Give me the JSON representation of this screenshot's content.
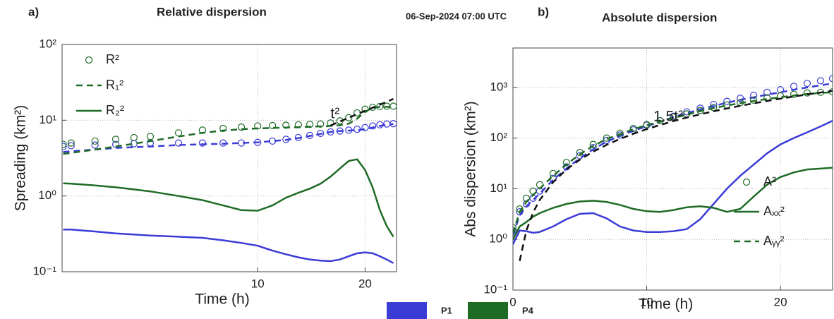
{
  "timestamp": "06-Sep-2024 07:00 UTC",
  "groups": [
    {
      "name": "P1",
      "color": "#3b3bd6"
    },
    {
      "name": "P4",
      "color": "#1e6b26"
    }
  ],
  "chart_data": [
    {
      "type": "line",
      "panel": "a)",
      "title": "Relative dispersion",
      "x_label": "Time (h)",
      "y_label": "Spreading (km²)",
      "xscale": "log",
      "yscale": "log",
      "grid": true,
      "legend": "upper left",
      "xlim": [
        2.83,
        24.5
      ],
      "ylim": [
        0.1,
        100
      ],
      "xticks": [
        10,
        20
      ],
      "yticks": [
        {
          "value": 0.1,
          "label": "10⁻¹"
        },
        {
          "value": 1,
          "label": "10⁰"
        },
        {
          "value": 10,
          "label": "10¹"
        },
        {
          "value": 100,
          "label": "10²"
        }
      ],
      "x": [
        2.85,
        3,
        3.5,
        4,
        4.5,
        5,
        6,
        7,
        8,
        9,
        10,
        11,
        12,
        13,
        14,
        15,
        16,
        17,
        18,
        19,
        20,
        21,
        22,
        23,
        24
      ],
      "series": [
        {
          "color": "#3b3bd6",
          "style": "marker",
          "values": [
            4.5,
            4.6,
            4.7,
            4.8,
            4.9,
            5.0,
            5.0,
            5.0,
            5.0,
            5.0,
            5.1,
            5.3,
            5.6,
            5.9,
            6.3,
            6.7,
            7.0,
            7.2,
            7.4,
            7.6,
            8.0,
            8.4,
            8.7,
            8.9,
            9.0
          ]
        },
        {
          "color": "#3b3bd6",
          "style": "dashed",
          "values": [
            3.8,
            3.9,
            4.1,
            4.3,
            4.4,
            4.5,
            4.7,
            4.8,
            4.9,
            5.0,
            5.1,
            5.3,
            5.5,
            5.8,
            6.2,
            6.6,
            7.0,
            7.2,
            7.3,
            7.4,
            7.6,
            8.0,
            8.4,
            8.7,
            8.9
          ]
        },
        {
          "color": "#3b3bd6",
          "style": "solid",
          "values": [
            0.36,
            0.36,
            0.34,
            0.32,
            0.31,
            0.3,
            0.29,
            0.28,
            0.26,
            0.24,
            0.22,
            0.19,
            0.17,
            0.155,
            0.145,
            0.14,
            0.138,
            0.145,
            0.16,
            0.175,
            0.18,
            0.175,
            0.16,
            0.145,
            0.13
          ]
        },
        {
          "name": "R²",
          "color": "#1e6b26",
          "style": "marker",
          "values": [
            4.8,
            5.0,
            5.3,
            5.6,
            5.9,
            6.1,
            6.8,
            7.4,
            7.8,
            8.1,
            8.4,
            8.5,
            8.6,
            8.7,
            8.8,
            8.9,
            9.2,
            9.8,
            10.8,
            12.5,
            14,
            14.8,
            15.2,
            15.3,
            15.3
          ]
        },
        {
          "name": "R₁²",
          "color": "#1e6b26",
          "style": "dashed",
          "values": [
            3.6,
            3.7,
            4.1,
            4.5,
            4.9,
            5.3,
            6.1,
            6.8,
            7.3,
            7.6,
            7.8,
            7.9,
            8.0,
            8.1,
            8.2,
            8.3,
            8.4,
            8.6,
            9.0,
            10.5,
            13,
            14.5,
            15,
            15,
            15
          ]
        },
        {
          "name": "R₂²",
          "color": "#1e6b26",
          "style": "solid",
          "values": [
            1.47,
            1.45,
            1.38,
            1.3,
            1.22,
            1.15,
            1.0,
            0.88,
            0.75,
            0.65,
            0.64,
            0.75,
            0.95,
            1.1,
            1.25,
            1.45,
            1.8,
            2.3,
            2.9,
            3.05,
            2.2,
            1.3,
            0.65,
            0.4,
            0.29
          ]
        },
        {
          "color": "#111111",
          "style": "dashed",
          "values": [
            null,
            null,
            null,
            null,
            null,
            null,
            null,
            null,
            null,
            null,
            null,
            null,
            null,
            null,
            null,
            null,
            8.5,
            9.6,
            10.8,
            12,
            13.3,
            14.6,
            16,
            17.6,
            19.1
          ]
        }
      ],
      "annotation": "t²"
    },
    {
      "type": "line",
      "panel": "b)",
      "title": "Absolute dispersion",
      "x_label": "Time (h)",
      "y_label": "Abs dispersion (km²)",
      "xscale": "linear",
      "yscale": "log",
      "grid": true,
      "legend": "lower right",
      "xlim": [
        0,
        23.9
      ],
      "ylim": [
        0.1,
        6000
      ],
      "xticks": [
        0,
        10,
        20
      ],
      "yticks": [
        {
          "value": 0.1,
          "label": "10⁻¹"
        },
        {
          "value": 1,
          "label": "10⁰"
        },
        {
          "value": 10,
          "label": "10¹"
        },
        {
          "value": 100,
          "label": "10²"
        },
        {
          "value": 1000,
          "label": "10³"
        }
      ],
      "x": [
        0,
        0.5,
        1,
        1.5,
        2,
        3,
        4,
        5,
        6,
        7,
        8,
        9,
        10,
        11,
        12,
        13,
        14,
        15,
        16,
        17,
        18,
        19,
        20,
        21,
        22,
        23,
        23.9
      ],
      "series": [
        {
          "color": "#3b3bd6",
          "style": "marker",
          "values": [
            1.5,
            3.5,
            5,
            6.5,
            9,
            16,
            27,
            45,
            65,
            90,
            115,
            145,
            180,
            220,
            270,
            330,
            390,
            460,
            530,
            610,
            700,
            800,
            900,
            1050,
            1200,
            1350,
            1500
          ]
        },
        {
          "color": "#3b3bd6",
          "style": "dashed",
          "values": [
            1.2,
            3,
            4.5,
            6,
            8,
            15,
            25,
            40,
            60,
            85,
            110,
            140,
            170,
            210,
            260,
            310,
            370,
            430,
            500,
            570,
            640,
            720,
            800,
            900,
            1000,
            1100,
            1200
          ]
        },
        {
          "color": "#3b3bd6",
          "style": "solid",
          "values": [
            0.8,
            1.5,
            1.45,
            1.35,
            1.4,
            1.8,
            2.5,
            3.2,
            3.3,
            2.6,
            1.8,
            1.5,
            1.4,
            1.4,
            1.45,
            1.6,
            2.5,
            5,
            10,
            18,
            30,
            50,
            75,
            100,
            130,
            170,
            220
          ]
        },
        {
          "name": "A²",
          "color": "#1e6b26",
          "style": "marker",
          "values": [
            1.7,
            4,
            6.5,
            9,
            12,
            20,
            33,
            52,
            75,
            100,
            125,
            155,
            185,
            220,
            260,
            300,
            350,
            400,
            450,
            500,
            560,
            620,
            680,
            730,
            780,
            800,
            820
          ]
        },
        {
          "name": "Aₓₓ²",
          "color": "#1e6b26",
          "style": "solid",
          "values": [
            1.0,
            1.8,
            2.2,
            2.8,
            3.3,
            4.2,
            5,
            5.6,
            5.8,
            5.5,
            4.8,
            4.0,
            3.6,
            3.5,
            3.8,
            4.3,
            4.5,
            4.2,
            3.5,
            4.0,
            7,
            12,
            17,
            21,
            24,
            25,
            26
          ]
        },
        {
          "name": "Aᵧᵧ²",
          "color": "#1e6b26",
          "style": "dashed",
          "values": [
            1.3,
            3.5,
            5.5,
            7.5,
            10,
            18,
            30,
            48,
            70,
            95,
            120,
            150,
            180,
            210,
            250,
            290,
            340,
            390,
            440,
            490,
            540,
            590,
            640,
            690,
            740,
            780,
            800
          ]
        },
        {
          "color": "#111111",
          "style": "dashed",
          "values": [
            null,
            0.375,
            1.5,
            3.375,
            6,
            13.5,
            24,
            37.5,
            54,
            73.5,
            96,
            121.5,
            150,
            181.5,
            216,
            253.5,
            294,
            337.5,
            384,
            433.5,
            486,
            541.5,
            600,
            661.5,
            726,
            793.5,
            856.8
          ]
        }
      ],
      "annotation": "1.5t²"
    }
  ]
}
